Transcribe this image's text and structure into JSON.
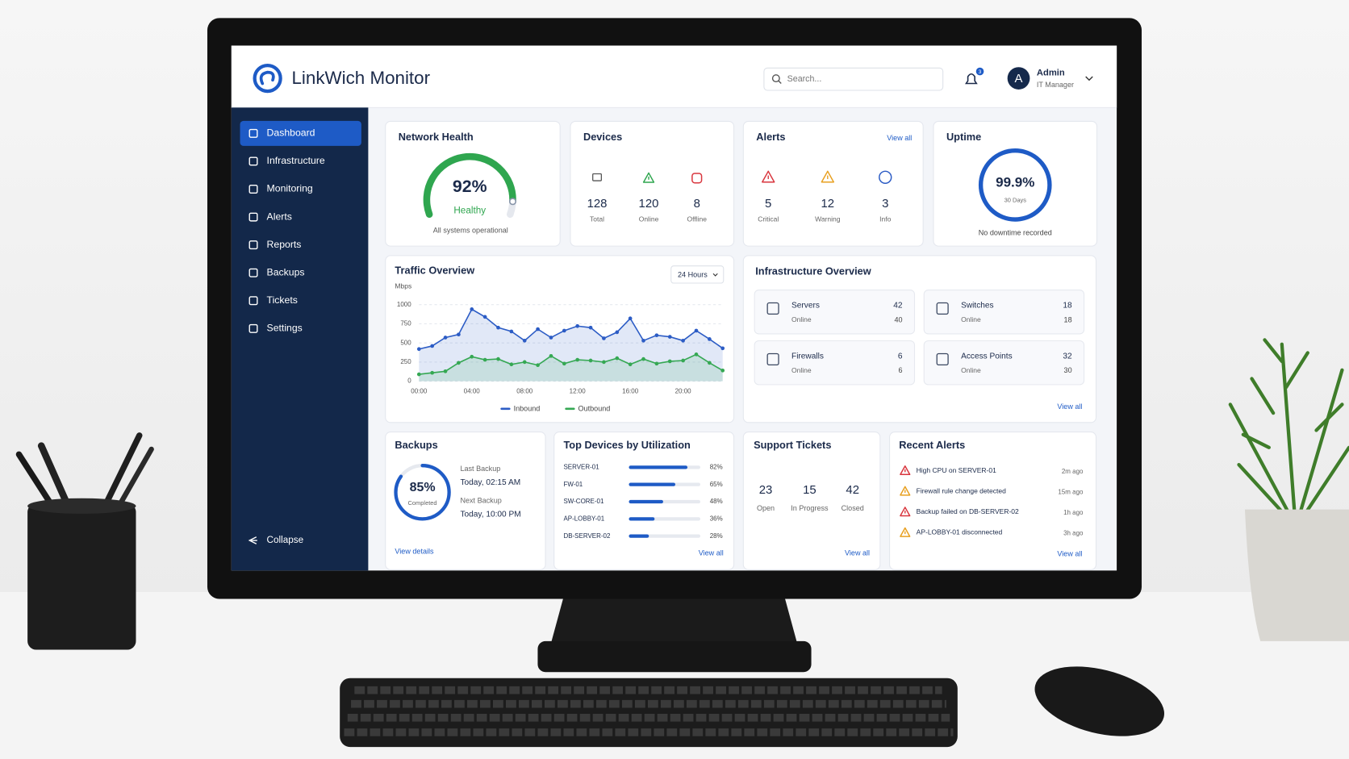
{
  "header": {
    "logo": "LinkWich Monitor",
    "search_placeholder": "Search...",
    "notification_count": 3,
    "user": {
      "initial": "A",
      "name": "Admin",
      "role": "IT Manager"
    }
  },
  "sidebar": {
    "items": [
      "Dashboard",
      "Infrastructure",
      "Monitoring",
      "Alerts",
      "Reports",
      "Backups",
      "Tickets",
      "Settings"
    ],
    "active_index": 0,
    "collapse": "Collapse"
  },
  "network_health": {
    "title": "Network Health",
    "value": 92,
    "value_label": "92%",
    "status": "Healthy",
    "note": "All systems operational"
  },
  "devices": {
    "title": "Devices",
    "stats": [
      {
        "value": 128,
        "label": "Total"
      },
      {
        "value": 120,
        "label": "Online"
      },
      {
        "value": 8,
        "label": "Offline"
      }
    ]
  },
  "alerts": {
    "title": "Alerts",
    "link": "View all",
    "stats": [
      {
        "value": 5,
        "label": "Critical"
      },
      {
        "value": 12,
        "label": "Warning"
      },
      {
        "value": 3,
        "label": "Info"
      }
    ]
  },
  "uptime": {
    "title": "Uptime",
    "value": 99.9,
    "value_label": "99.9%",
    "period": "30 Days",
    "note": "No downtime recorded"
  },
  "traffic": {
    "type": "line",
    "title": "Traffic Overview",
    "range": "24 Hours",
    "y_label": "Mbps",
    "categories": [
      "00:00",
      null,
      null,
      null,
      "04:00",
      null,
      null,
      null,
      "08:00",
      null,
      null,
      null,
      "12:00",
      null,
      null,
      null,
      "16:00",
      null,
      null,
      null,
      "20:00",
      null,
      null,
      null
    ],
    "series": [
      {
        "name": "Inbound",
        "color": "#2c5cc5",
        "values": [
          420,
          460,
          570,
          610,
          940,
          840,
          700,
          650,
          530,
          680,
          570,
          660,
          720,
          700,
          560,
          640,
          820,
          530,
          600,
          580,
          530,
          660,
          550,
          430
        ]
      },
      {
        "name": "Outbound",
        "color": "#35a853",
        "values": [
          90,
          110,
          130,
          240,
          320,
          280,
          290,
          220,
          250,
          210,
          330,
          230,
          280,
          270,
          250,
          300,
          220,
          290,
          230,
          260,
          270,
          350,
          240,
          140
        ]
      }
    ],
    "ylim": [
      0,
      1000
    ],
    "yticks": [
      0,
      250,
      500,
      750,
      1000
    ],
    "grid": true
  },
  "infrastructure": {
    "title": "Infrastructure Overview",
    "link": "View all",
    "items": [
      {
        "name": "Servers",
        "status": "Online",
        "total": 42,
        "online": 40
      },
      {
        "name": "Switches",
        "status": "Online",
        "total": 18,
        "online": 18
      },
      {
        "name": "Firewalls",
        "status": "Online",
        "total": 6,
        "online": 6
      },
      {
        "name": "Access Points",
        "status": "Online",
        "total": 32,
        "online": 30
      }
    ]
  },
  "backups": {
    "title": "Backups",
    "value": 85,
    "value_label": "85%",
    "sub": "Completed",
    "last_label": "Last Backup",
    "last": "Today, 02:15 AM",
    "next_label": "Next Backup",
    "next": "Today, 10:00 PM",
    "link": "View details"
  },
  "top_devices": {
    "title": "Top Devices by Utilization",
    "link": "View all",
    "rows": [
      {
        "name": "SERVER-01",
        "value": 82,
        "value_label": "82%"
      },
      {
        "name": "FW-01",
        "value": 65,
        "value_label": "65%"
      },
      {
        "name": "SW-CORE-01",
        "value": 48,
        "value_label": "48%"
      },
      {
        "name": "AP-LOBBY-01",
        "value": 36,
        "value_label": "36%"
      },
      {
        "name": "DB-SERVER-02",
        "value": 28,
        "value_label": "28%"
      }
    ]
  },
  "support_tickets": {
    "title": "Support Tickets",
    "link": "View all",
    "stats": [
      {
        "value": 23,
        "label": "Open"
      },
      {
        "value": 15,
        "label": "In Progress"
      },
      {
        "value": 42,
        "label": "Closed"
      }
    ]
  },
  "recent_alerts": {
    "title": "Recent Alerts",
    "link": "View all",
    "items": [
      {
        "text": "High CPU on SERVER-01",
        "time": "2m ago"
      },
      {
        "text": "Firewall rule change detected",
        "time": "15m ago"
      },
      {
        "text": "Backup failed on DB-SERVER-02",
        "time": "1h ago"
      },
      {
        "text": "AP-LOBBY-01 disconnected",
        "time": "3h ago"
      }
    ]
  }
}
